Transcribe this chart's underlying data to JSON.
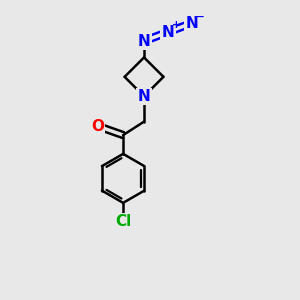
{
  "bg_color": "#e8e8e8",
  "bond_color": "#000000",
  "bond_width": 1.8,
  "atom_colors": {
    "N": "#0000ff",
    "O": "#ff0000",
    "Cl": "#00aa00",
    "C": "#000000"
  },
  "font_size_atom": 11,
  "font_size_charge": 7.5,
  "xlim": [
    0,
    10
  ],
  "ylim": [
    0,
    10
  ]
}
